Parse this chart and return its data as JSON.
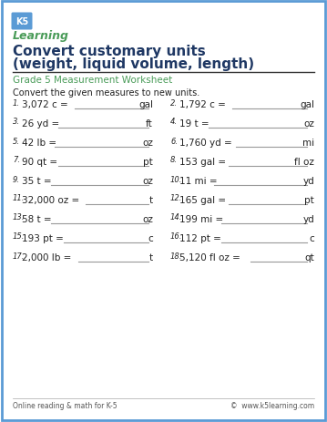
{
  "title_line1": "Convert customary units",
  "title_line2": "(weight, liquid volume, length)",
  "subtitle": "Grade 5 Measurement Worksheet",
  "instruction": "Convert the given measures to new units.",
  "problems": [
    {
      "num": "1.",
      "expr": "3,072 c =",
      "unit": "gal",
      "col": 0
    },
    {
      "num": "2.",
      "expr": "1,792 c =",
      "unit": "gal",
      "col": 1
    },
    {
      "num": "3.",
      "expr": "26 yd =",
      "unit": "ft",
      "col": 0
    },
    {
      "num": "4.",
      "expr": "19 t =",
      "unit": "oz",
      "col": 1
    },
    {
      "num": "5.",
      "expr": "42 lb =",
      "unit": "oz",
      "col": 0
    },
    {
      "num": "6.",
      "expr": "1,760 yd =",
      "unit": "mi",
      "col": 1
    },
    {
      "num": "7.",
      "expr": "90 qt =",
      "unit": "pt",
      "col": 0
    },
    {
      "num": "8.",
      "expr": "153 gal =",
      "unit": "fl oz",
      "col": 1
    },
    {
      "num": "9.",
      "expr": "35 t =",
      "unit": "oz",
      "col": 0
    },
    {
      "num": "10.",
      "expr": "11 mi =",
      "unit": "yd",
      "col": 1
    },
    {
      "num": "11.",
      "expr": "32,000 oz =",
      "unit": "t",
      "col": 0
    },
    {
      "num": "12.",
      "expr": "165 gal =",
      "unit": "pt",
      "col": 1
    },
    {
      "num": "13.",
      "expr": "58 t =",
      "unit": "oz",
      "col": 0
    },
    {
      "num": "14.",
      "expr": "199 mi =",
      "unit": "yd",
      "col": 1
    },
    {
      "num": "15.",
      "expr": "193 pt =",
      "unit": "c",
      "col": 0
    },
    {
      "num": "16.",
      "expr": "112 pt =",
      "unit": "c",
      "col": 1
    },
    {
      "num": "17.",
      "expr": "2,000 lb =",
      "unit": "t",
      "col": 0
    },
    {
      "num": "18.",
      "expr": "5,120 fl oz =",
      "unit": "qt",
      "col": 1
    }
  ],
  "footer_left": "Online reading & math for K-5",
  "footer_right": "©  www.k5learning.com",
  "border_color": "#5b9bd5",
  "title_color": "#1f3864",
  "subtitle_color": "#4a9c59",
  "text_color": "#222222",
  "bg_color": "#ffffff",
  "line_color": "#999999",
  "logo_green": "#4a9c59",
  "logo_blue": "#5b9bd5"
}
